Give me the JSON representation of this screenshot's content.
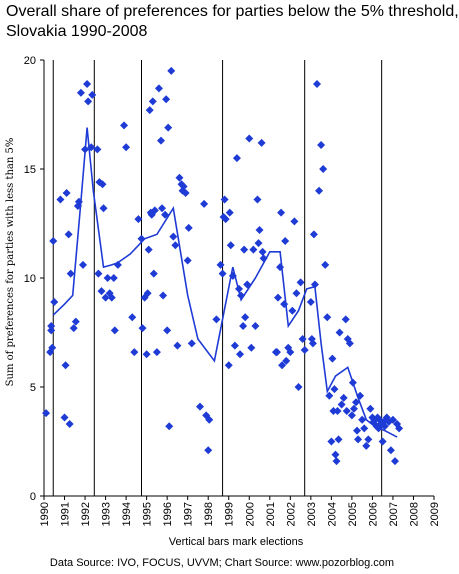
{
  "chart_data": {
    "type": "scatter",
    "title_line1": "Overall share of preferences for parties below the 5% threshold,",
    "title_line2": "Slovakia 1990-2008",
    "ylabel": "Sum of preferences for parties with less than 5%",
    "xlabel": "Vertical bars mark elections",
    "source": "Data Source: IVO, FOCUS, UVVM; Chart Source: www.pozorblog.com",
    "xlim": [
      1990,
      2009
    ],
    "ylim": [
      0,
      20
    ],
    "x_ticks": [
      "1990",
      "1991",
      "1992",
      "1993",
      "1994",
      "1995",
      "1996",
      "1997",
      "1998",
      "1999",
      "2000",
      "2001",
      "2002",
      "2003",
      "2004",
      "2005",
      "2006",
      "2007",
      "2008",
      "2009"
    ],
    "y_ticks": [
      "0",
      "5",
      "10",
      "15",
      "20"
    ],
    "elections": [
      1990.45,
      1992.45,
      1994.75,
      1998.7,
      2002.7,
      2006.45
    ],
    "colors": {
      "marker": "#1f3bd6",
      "line": "#1f3bd6",
      "axis": "#000000"
    },
    "series": [
      {
        "type": "scatter",
        "points": [
          [
            1990.1,
            3.8
          ],
          [
            1990.3,
            6.6
          ],
          [
            1990.35,
            7.6
          ],
          [
            1990.35,
            7.8
          ],
          [
            1990.4,
            6.8
          ],
          [
            1990.45,
            11.7
          ],
          [
            1990.5,
            8.9
          ],
          [
            1990.8,
            13.6
          ],
          [
            1991.0,
            3.6
          ],
          [
            1991.05,
            6.0
          ],
          [
            1991.1,
            13.9
          ],
          [
            1991.2,
            12.0
          ],
          [
            1991.25,
            3.3
          ],
          [
            1991.3,
            10.2
          ],
          [
            1991.45,
            7.7
          ],
          [
            1991.55,
            8.0
          ],
          [
            1991.65,
            13.3
          ],
          [
            1991.7,
            13.5
          ],
          [
            1991.8,
            18.5
          ],
          [
            1991.9,
            10.6
          ],
          [
            1992.0,
            15.9
          ],
          [
            1992.1,
            18.9
          ],
          [
            1992.15,
            18.1
          ],
          [
            1992.3,
            16.0
          ],
          [
            1992.35,
            18.4
          ],
          [
            1992.6,
            15.9
          ],
          [
            1992.65,
            10.2
          ],
          [
            1992.7,
            14.4
          ],
          [
            1992.8,
            9.4
          ],
          [
            1992.85,
            14.3
          ],
          [
            1992.9,
            13.2
          ],
          [
            1993.0,
            9.1
          ],
          [
            1993.1,
            10.0
          ],
          [
            1993.2,
            9.3
          ],
          [
            1993.3,
            9.1
          ],
          [
            1993.4,
            10.0
          ],
          [
            1993.45,
            7.6
          ],
          [
            1993.6,
            10.6
          ],
          [
            1993.9,
            17.0
          ],
          [
            1994.0,
            16.0
          ],
          [
            1994.3,
            8.2
          ],
          [
            1994.4,
            6.6
          ],
          [
            1994.6,
            12.7
          ],
          [
            1994.75,
            11.8
          ],
          [
            1994.8,
            7.7
          ],
          [
            1994.9,
            9.1
          ],
          [
            1995.0,
            6.5
          ],
          [
            1995.05,
            9.3
          ],
          [
            1995.1,
            11.3
          ],
          [
            1995.15,
            17.7
          ],
          [
            1995.2,
            13.0
          ],
          [
            1995.25,
            12.9
          ],
          [
            1995.3,
            18.1
          ],
          [
            1995.35,
            10.2
          ],
          [
            1995.4,
            13.1
          ],
          [
            1995.5,
            6.6
          ],
          [
            1995.6,
            18.7
          ],
          [
            1995.7,
            16.3
          ],
          [
            1995.75,
            13.2
          ],
          [
            1995.8,
            9.2
          ],
          [
            1995.9,
            12.9
          ],
          [
            1995.95,
            18.2
          ],
          [
            1996.0,
            7.6
          ],
          [
            1996.05,
            16.9
          ],
          [
            1996.1,
            3.2
          ],
          [
            1996.2,
            19.5
          ],
          [
            1996.3,
            11.9
          ],
          [
            1996.4,
            11.5
          ],
          [
            1996.5,
            6.9
          ],
          [
            1996.6,
            14.6
          ],
          [
            1996.7,
            14.3
          ],
          [
            1996.75,
            14.0
          ],
          [
            1996.8,
            14.2
          ],
          [
            1996.9,
            13.9
          ],
          [
            1997.0,
            10.8
          ],
          [
            1997.05,
            12.3
          ],
          [
            1997.2,
            7.0
          ],
          [
            1997.6,
            4.1
          ],
          [
            1997.8,
            13.4
          ],
          [
            1997.9,
            3.7
          ],
          [
            1998.0,
            2.1
          ],
          [
            1998.05,
            3.5
          ],
          [
            1998.4,
            8.1
          ],
          [
            1998.6,
            10.6
          ],
          [
            1998.7,
            10.2
          ],
          [
            1998.75,
            12.8
          ],
          [
            1998.8,
            13.6
          ],
          [
            1998.85,
            12.7
          ],
          [
            1999.0,
            6.0
          ],
          [
            1999.05,
            13.0
          ],
          [
            1999.1,
            11.5
          ],
          [
            1999.2,
            10.1
          ],
          [
            1999.3,
            6.9
          ],
          [
            1999.4,
            15.5
          ],
          [
            1999.5,
            9.5
          ],
          [
            1999.55,
            6.5
          ],
          [
            1999.6,
            9.2
          ],
          [
            1999.7,
            7.8
          ],
          [
            1999.75,
            11.3
          ],
          [
            1999.8,
            8.2
          ],
          [
            1999.9,
            9.7
          ],
          [
            2000.0,
            16.4
          ],
          [
            2000.1,
            6.8
          ],
          [
            2000.2,
            11.3
          ],
          [
            2000.3,
            7.8
          ],
          [
            2000.4,
            13.6
          ],
          [
            2000.45,
            11.6
          ],
          [
            2000.5,
            12.2
          ],
          [
            2000.6,
            16.2
          ],
          [
            2000.65,
            11.2
          ],
          [
            2000.7,
            10.9
          ],
          [
            2001.3,
            6.6
          ],
          [
            2001.35,
            6.6
          ],
          [
            2001.4,
            9.1
          ],
          [
            2001.5,
            10.5
          ],
          [
            2001.55,
            13.0
          ],
          [
            2001.6,
            6.0
          ],
          [
            2001.7,
            8.8
          ],
          [
            2001.75,
            11.7
          ],
          [
            2001.8,
            6.2
          ],
          [
            2001.9,
            6.8
          ],
          [
            2002.0,
            6.6
          ],
          [
            2002.1,
            8.5
          ],
          [
            2002.2,
            12.6
          ],
          [
            2002.3,
            9.3
          ],
          [
            2002.4,
            5.0
          ],
          [
            2002.5,
            9.8
          ],
          [
            2002.6,
            7.2
          ],
          [
            2002.7,
            6.7
          ],
          [
            2003.0,
            8.9
          ],
          [
            2003.05,
            7.2
          ],
          [
            2003.1,
            7.0
          ],
          [
            2003.15,
            12.0
          ],
          [
            2003.2,
            9.7
          ],
          [
            2003.3,
            18.9
          ],
          [
            2003.4,
            14.0
          ],
          [
            2003.5,
            16.1
          ],
          [
            2003.6,
            15.0
          ],
          [
            2003.7,
            10.6
          ],
          [
            2003.8,
            8.2
          ],
          [
            2003.9,
            4.6
          ],
          [
            2004.0,
            2.5
          ],
          [
            2004.05,
            6.3
          ],
          [
            2004.1,
            3.9
          ],
          [
            2004.15,
            4.9
          ],
          [
            2004.2,
            1.9
          ],
          [
            2004.25,
            1.6
          ],
          [
            2004.3,
            3.9
          ],
          [
            2004.35,
            2.6
          ],
          [
            2004.4,
            7.5
          ],
          [
            2004.5,
            4.2
          ],
          [
            2004.6,
            4.5
          ],
          [
            2004.7,
            8.1
          ],
          [
            2004.75,
            3.9
          ],
          [
            2004.8,
            7.2
          ],
          [
            2004.9,
            7.0
          ],
          [
            2005.0,
            3.7
          ],
          [
            2005.05,
            5.2
          ],
          [
            2005.1,
            4.0
          ],
          [
            2005.2,
            4.3
          ],
          [
            2005.25,
            3.0
          ],
          [
            2005.3,
            2.6
          ],
          [
            2005.4,
            4.6
          ],
          [
            2005.5,
            3.5
          ],
          [
            2005.6,
            3.1
          ],
          [
            2005.7,
            2.3
          ],
          [
            2005.8,
            2.6
          ],
          [
            2005.9,
            4.0
          ],
          [
            2006.0,
            3.6
          ],
          [
            2006.05,
            3.4
          ],
          [
            2006.1,
            3.5
          ],
          [
            2006.2,
            3.2
          ],
          [
            2006.25,
            3.6
          ],
          [
            2006.3,
            3.1
          ],
          [
            2006.35,
            3.5
          ],
          [
            2006.4,
            3.3
          ],
          [
            2006.5,
            2.5
          ],
          [
            2006.55,
            3.4
          ],
          [
            2006.6,
            3.2
          ],
          [
            2006.7,
            3.6
          ],
          [
            2006.8,
            3.4
          ],
          [
            2006.9,
            2.1
          ],
          [
            2007.0,
            3.5
          ],
          [
            2007.1,
            1.6
          ],
          [
            2007.2,
            3.3
          ],
          [
            2007.3,
            3.1
          ]
        ]
      },
      {
        "type": "line",
        "points": [
          [
            1990.45,
            8.3
          ],
          [
            1991.0,
            8.8
          ],
          [
            1991.4,
            9.2
          ],
          [
            1991.8,
            13.5
          ],
          [
            1992.1,
            16.9
          ],
          [
            1992.4,
            14.0
          ],
          [
            1992.9,
            10.5
          ],
          [
            1993.3,
            10.6
          ],
          [
            1993.6,
            10.7
          ],
          [
            1994.2,
            11.1
          ],
          [
            1994.9,
            11.8
          ],
          [
            1995.5,
            12.0
          ],
          [
            1996.3,
            13.2
          ],
          [
            1997.0,
            9.2
          ],
          [
            1997.5,
            7.2
          ],
          [
            1998.3,
            6.2
          ],
          [
            1999.2,
            10.5
          ],
          [
            1999.6,
            9.0
          ],
          [
            2000.3,
            10.0
          ],
          [
            2001.0,
            11.2
          ],
          [
            2001.5,
            11.2
          ],
          [
            2001.9,
            7.8
          ],
          [
            2002.4,
            8.5
          ],
          [
            2002.8,
            9.5
          ],
          [
            2003.2,
            9.6
          ],
          [
            2003.5,
            7.0
          ],
          [
            2003.8,
            4.8
          ],
          [
            2004.2,
            5.5
          ],
          [
            2004.8,
            5.9
          ],
          [
            2005.3,
            4.5
          ],
          [
            2005.7,
            3.5
          ],
          [
            2006.1,
            3.2
          ],
          [
            2006.6,
            3.0
          ],
          [
            2007.2,
            2.7
          ]
        ]
      }
    ]
  }
}
